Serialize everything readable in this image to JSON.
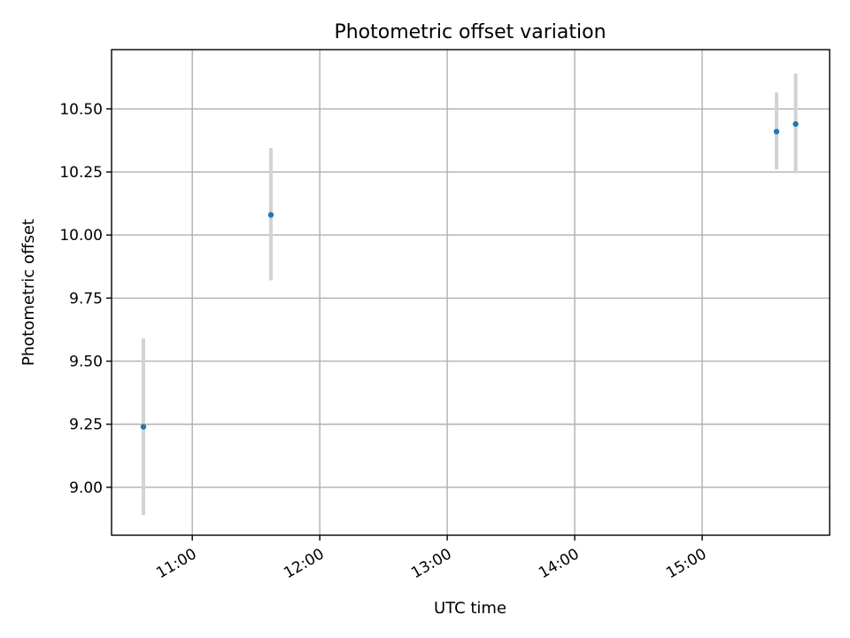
{
  "chart_data": {
    "type": "scatter",
    "title": "Photometric offset variation",
    "xlabel": "UTC time",
    "ylabel": "Photometric offset",
    "xlim": [
      "10:22",
      "16:00"
    ],
    "ylim": [
      8.81,
      10.735
    ],
    "x_ticks": [
      "11:00",
      "12:00",
      "13:00",
      "14:00",
      "15:00"
    ],
    "y_ticks": [
      "9.00",
      "9.25",
      "9.50",
      "9.75",
      "10.00",
      "10.25",
      "10.50"
    ],
    "grid": true,
    "legend": "none",
    "points": [
      {
        "x": "10:37",
        "y": 9.24,
        "err_low": 8.89,
        "err_high": 9.59
      },
      {
        "x": "11:37",
        "y": 10.08,
        "err_low": 9.82,
        "err_high": 10.345
      },
      {
        "x": "15:35",
        "y": 10.41,
        "err_low": 10.26,
        "err_high": 10.565
      },
      {
        "x": "15:44",
        "y": 10.44,
        "err_low": 10.245,
        "err_high": 10.64
      }
    ],
    "colors": {
      "point": "#1f77b4",
      "errorbar": "#d3d3d3",
      "grid": "#b0b0b0"
    }
  }
}
